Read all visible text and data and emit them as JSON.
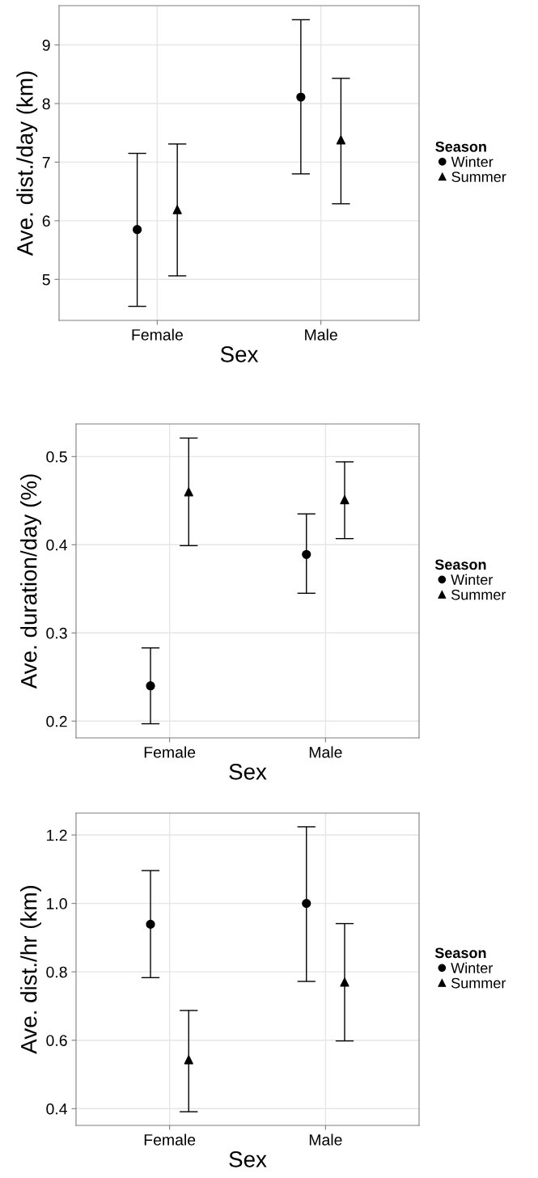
{
  "chart_data": [
    {
      "type": "scatter",
      "xlabel": "Sex",
      "ylabel": "Ave. dist./day (km)",
      "legend_title": "Season",
      "legend": "right",
      "grid": true,
      "categories": [
        "Female",
        "Male"
      ],
      "ylim": [
        4.3,
        9.67
      ],
      "yticks": [
        5,
        6,
        7,
        8,
        9
      ],
      "series": [
        {
          "name": "Winter",
          "color": "#000000",
          "marker": "circle",
          "values": [
            5.85,
            8.11
          ],
          "errors": [
            [
              4.54,
              7.15
            ],
            [
              6.8,
              9.43
            ]
          ]
        },
        {
          "name": "Summer",
          "color": "#000000",
          "marker": "triangle",
          "values": [
            6.19,
            7.38
          ],
          "errors": [
            [
              5.06,
              7.31
            ],
            [
              6.29,
              8.43
            ]
          ]
        }
      ]
    },
    {
      "type": "scatter",
      "xlabel": "Sex",
      "ylabel": "Ave. duration/day (%)",
      "legend_title": "Season",
      "legend": "right",
      "grid": true,
      "categories": [
        "Female",
        "Male"
      ],
      "ylim": [
        0.181,
        0.537
      ],
      "yticks": [
        {
          "value": 0.2,
          "label": "0.2"
        },
        {
          "value": 0.3,
          "label": "0.3"
        },
        {
          "value": 0.4,
          "label": "0.4"
        },
        {
          "value": 0.5,
          "label": "0.5"
        }
      ],
      "series": [
        {
          "name": "Winter",
          "color": "#000000",
          "marker": "circle",
          "values": [
            0.24,
            0.389
          ],
          "errors": [
            [
              0.197,
              0.283
            ],
            [
              0.345,
              0.435
            ]
          ]
        },
        {
          "name": "Summer",
          "color": "#000000",
          "marker": "triangle",
          "values": [
            0.46,
            0.451
          ],
          "errors": [
            [
              0.399,
              0.521
            ],
            [
              0.407,
              0.494
            ]
          ]
        }
      ]
    },
    {
      "type": "scatter",
      "xlabel": "Sex",
      "ylabel": "Ave. dist./hr (km)",
      "legend_title": "Season",
      "legend": "right",
      "grid": true,
      "categories": [
        "Female",
        "Male"
      ],
      "ylim": [
        0.351,
        1.264
      ],
      "yticks": [
        {
          "value": 0.4,
          "label": "0.4"
        },
        {
          "value": 0.6,
          "label": "0.6"
        },
        {
          "value": 0.8,
          "label": "0.8"
        },
        {
          "value": 1.0,
          "label": "1.0"
        },
        {
          "value": 1.2,
          "label": "1.2"
        }
      ],
      "series": [
        {
          "name": "Winter",
          "color": "#000000",
          "marker": "circle",
          "values": [
            0.939,
            1.0
          ],
          "errors": [
            [
              0.783,
              1.096
            ],
            [
              0.772,
              1.224
            ]
          ]
        },
        {
          "name": "Summer",
          "color": "#000000",
          "marker": "triangle",
          "values": [
            0.543,
            0.77
          ],
          "errors": [
            [
              0.391,
              0.687
            ],
            [
              0.598,
              0.941
            ]
          ]
        }
      ]
    }
  ]
}
